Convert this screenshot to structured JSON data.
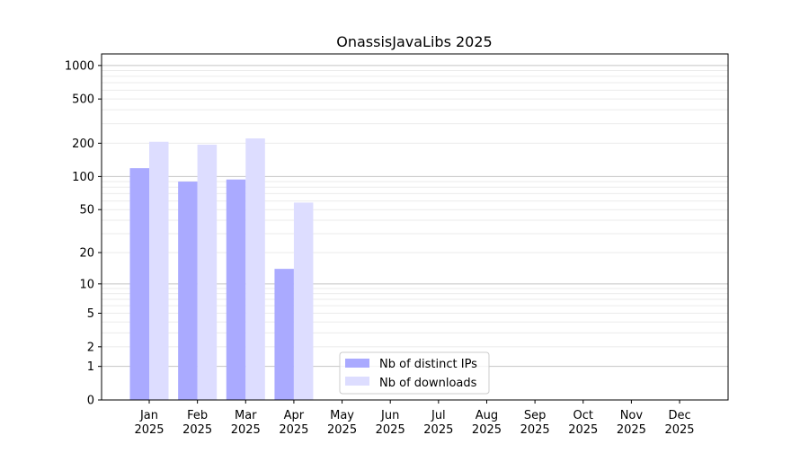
{
  "chart_data": {
    "type": "bar",
    "title": "OnassisJavaLibs 2025",
    "xlabel": "",
    "ylabel": "",
    "yscale": "log10(1+y)",
    "ylim": [
      0,
      1270
    ],
    "yticks": [
      0,
      1,
      2,
      5,
      10,
      20,
      50,
      100,
      200,
      500,
      1000
    ],
    "grid": true,
    "legend_position": "bottom-center",
    "categories": [
      [
        "Jan",
        "2025"
      ],
      [
        "Feb",
        "2025"
      ],
      [
        "Mar",
        "2025"
      ],
      [
        "Apr",
        "2025"
      ],
      [
        "May",
        "2025"
      ],
      [
        "Jun",
        "2025"
      ],
      [
        "Jul",
        "2025"
      ],
      [
        "Aug",
        "2025"
      ],
      [
        "Sep",
        "2025"
      ],
      [
        "Oct",
        "2025"
      ],
      [
        "Nov",
        "2025"
      ],
      [
        "Dec",
        "2025"
      ]
    ],
    "series": [
      {
        "name": "Nb of distinct IPs",
        "color": "#aaaaff",
        "values": [
          119,
          90,
          94,
          14,
          null,
          null,
          null,
          null,
          null,
          null,
          null,
          null
        ]
      },
      {
        "name": "Nb of downloads",
        "color": "#ddddff",
        "values": [
          206,
          194,
          221,
          58,
          null,
          null,
          null,
          null,
          null,
          null,
          null,
          null
        ]
      }
    ]
  }
}
